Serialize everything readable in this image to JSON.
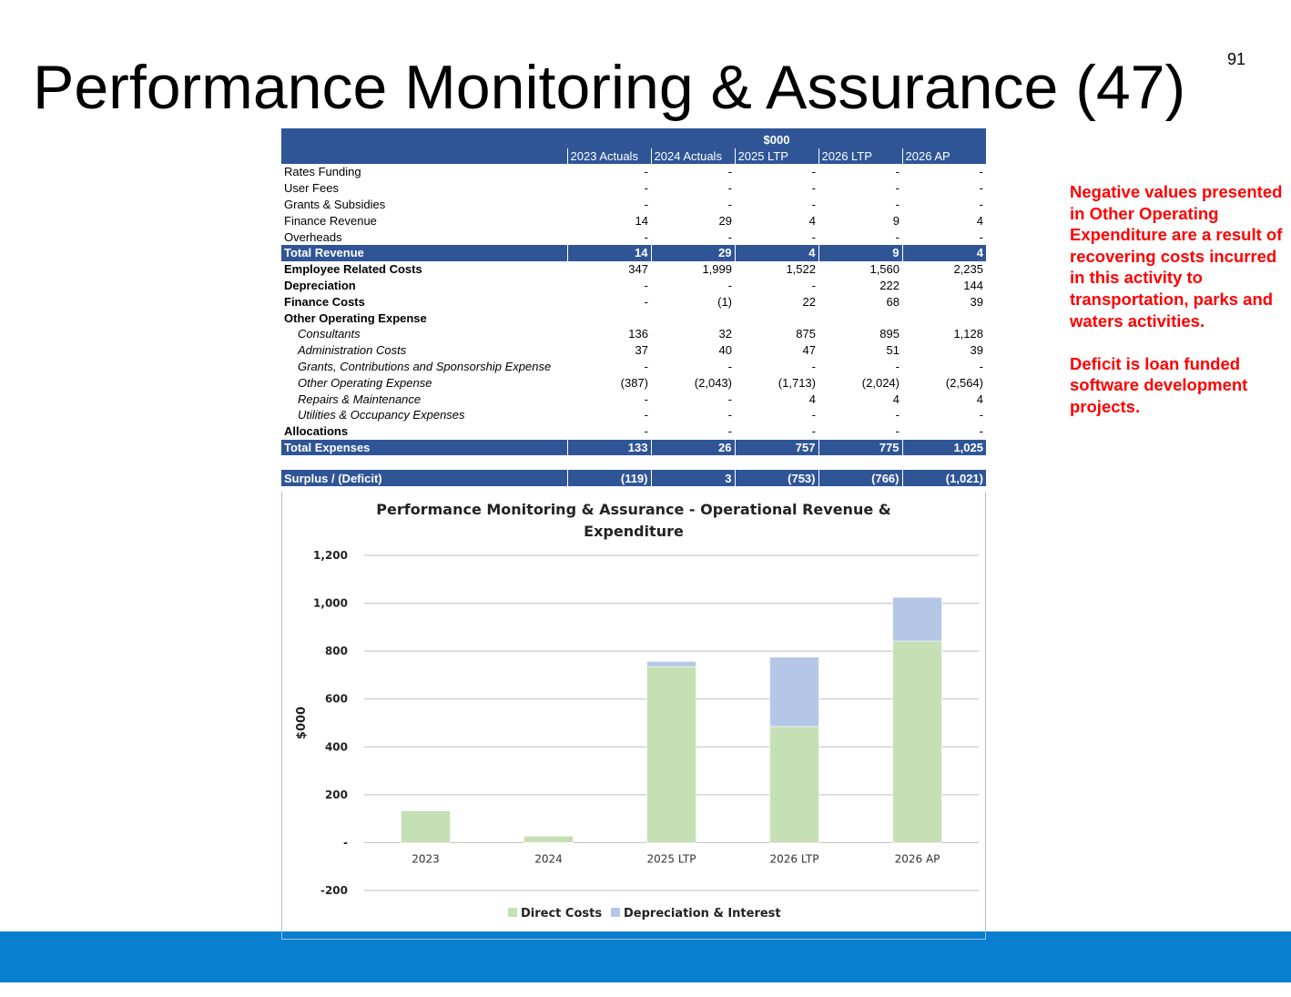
{
  "slide": {
    "title": "Performance Monitoring & Assurance (47)",
    "page_number": "91"
  },
  "table": {
    "unit_header": "$000",
    "columns": [
      "2023 Actuals",
      "2024 Actuals",
      "2025 LTP",
      "2026 LTP",
      "2026 AP"
    ],
    "rows": [
      {
        "label": "Rates Funding",
        "style": "normal",
        "values": [
          "-",
          "-",
          "-",
          "-",
          "-"
        ]
      },
      {
        "label": "User Fees",
        "style": "normal",
        "values": [
          "-",
          "-",
          "-",
          "-",
          "-"
        ]
      },
      {
        "label": "Grants & Subsidies",
        "style": "normal",
        "values": [
          "-",
          "-",
          "-",
          "-",
          "-"
        ]
      },
      {
        "label": "Finance Revenue",
        "style": "normal",
        "values": [
          "14",
          "29",
          "4",
          "9",
          "4"
        ]
      },
      {
        "label": "Overheads",
        "style": "normal",
        "values": [
          "-",
          "-",
          "-",
          "-",
          "-"
        ]
      },
      {
        "label": "Total Revenue",
        "style": "total",
        "values": [
          "14",
          "29",
          "4",
          "9",
          "4"
        ]
      },
      {
        "label": "Employee Related Costs",
        "style": "bold",
        "values": [
          "347",
          "1,999",
          "1,522",
          "1,560",
          "2,235"
        ]
      },
      {
        "label": "Depreciation",
        "style": "bold",
        "values": [
          "-",
          "-",
          "-",
          "222",
          "144"
        ]
      },
      {
        "label": "Finance Costs",
        "style": "bold",
        "values": [
          "-",
          "(1)",
          "22",
          "68",
          "39"
        ]
      },
      {
        "label": "Other Operating  Expense",
        "style": "bold",
        "values": [
          "",
          "",
          "",
          "",
          ""
        ]
      },
      {
        "label": "Consultants",
        "style": "sub",
        "values": [
          "136",
          "32",
          "875",
          "895",
          "1,128"
        ]
      },
      {
        "label": "Administration Costs",
        "style": "sub",
        "values": [
          "37",
          "40",
          "47",
          "51",
          "39"
        ]
      },
      {
        "label": "Grants, Contributions and Sponsorship Expense",
        "style": "sub",
        "values": [
          "-",
          "-",
          "-",
          "-",
          "-"
        ]
      },
      {
        "label": "Other Operating Expense",
        "style": "sub",
        "values": [
          "(387)",
          "(2,043)",
          "(1,713)",
          "(2,024)",
          "(2,564)"
        ]
      },
      {
        "label": "Repairs & Maintenance",
        "style": "sub",
        "values": [
          "-",
          "-",
          "4",
          "4",
          "4"
        ]
      },
      {
        "label": "Utilities & Occupancy Expenses",
        "style": "sub",
        "values": [
          "-",
          "-",
          "-",
          "-",
          "-"
        ]
      },
      {
        "label": "Allocations",
        "style": "bold",
        "values": [
          "-",
          "-",
          "-",
          "-",
          "-"
        ]
      },
      {
        "label": "Total Expenses",
        "style": "total",
        "values": [
          "133",
          "26",
          "757",
          "775",
          "1,025"
        ]
      },
      {
        "label": "",
        "style": "spacer",
        "values": [
          "",
          "",
          "",
          "",
          ""
        ]
      },
      {
        "label": "Surplus / (Deficit)",
        "style": "total",
        "values": [
          "(119)",
          "3",
          "(753)",
          "(766)",
          "(1,021)"
        ]
      }
    ]
  },
  "notes": {
    "paragraph_1": "Negative values presented in Other Operating Expenditure are a result of recovering costs incurred in this activity to transportation, parks and waters activities.",
    "paragraph_2": "Deficit is loan funded software development projects."
  },
  "colors": {
    "table_header": "#2f5597",
    "note_text": "#ff0000",
    "direct_costs": "#c5e0b4",
    "depreciation_interest": "#b4c7e7",
    "footer_bar": "#0a7fcf"
  },
  "chart_data": {
    "type": "bar",
    "stacked": true,
    "title": "Performance Monitoring & Assurance - Operational Revenue & Expenditure",
    "title_lines": [
      "Performance Monitoring & Assurance - Operational Revenue &",
      "Expenditure"
    ],
    "xlabel": "",
    "ylabel": "$000",
    "categories": [
      "2023",
      "2024",
      "2025 LTP",
      "2026 LTP",
      "2026 AP"
    ],
    "series": [
      {
        "name": "Direct Costs",
        "values": [
          133,
          27,
          735,
          485,
          842
        ]
      },
      {
        "name": "Depreciation & Interest",
        "values": [
          0,
          -1,
          22,
          290,
          183
        ]
      }
    ],
    "ylim": [
      -200,
      1200
    ],
    "yticks": [
      -200,
      0,
      200,
      400,
      600,
      800,
      1000,
      1200
    ],
    "ytick_labels": [
      "-200",
      "-",
      "200",
      "400",
      "600",
      "800",
      "1,000",
      "1,200"
    ],
    "grid": true,
    "legend": "bottom"
  }
}
